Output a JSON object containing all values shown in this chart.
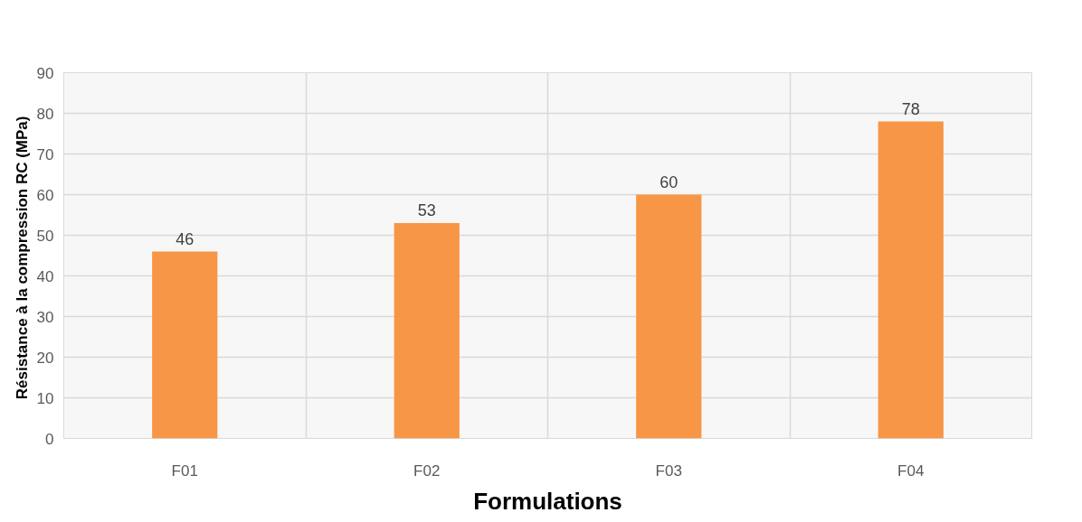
{
  "chart_data": {
    "type": "bar",
    "xlabel": "Formulations",
    "ylabel": "Résistance à la compression  RC (MPa)",
    "categories": [
      "F01",
      "F02",
      "F03",
      "F04"
    ],
    "values": [
      46,
      53,
      60,
      78
    ],
    "color": "#f79646",
    "ylim": [
      0,
      90
    ],
    "yticks": [
      0,
      10,
      20,
      30,
      40,
      50,
      60,
      70,
      80,
      90
    ],
    "grid": true,
    "data_labels": true
  }
}
